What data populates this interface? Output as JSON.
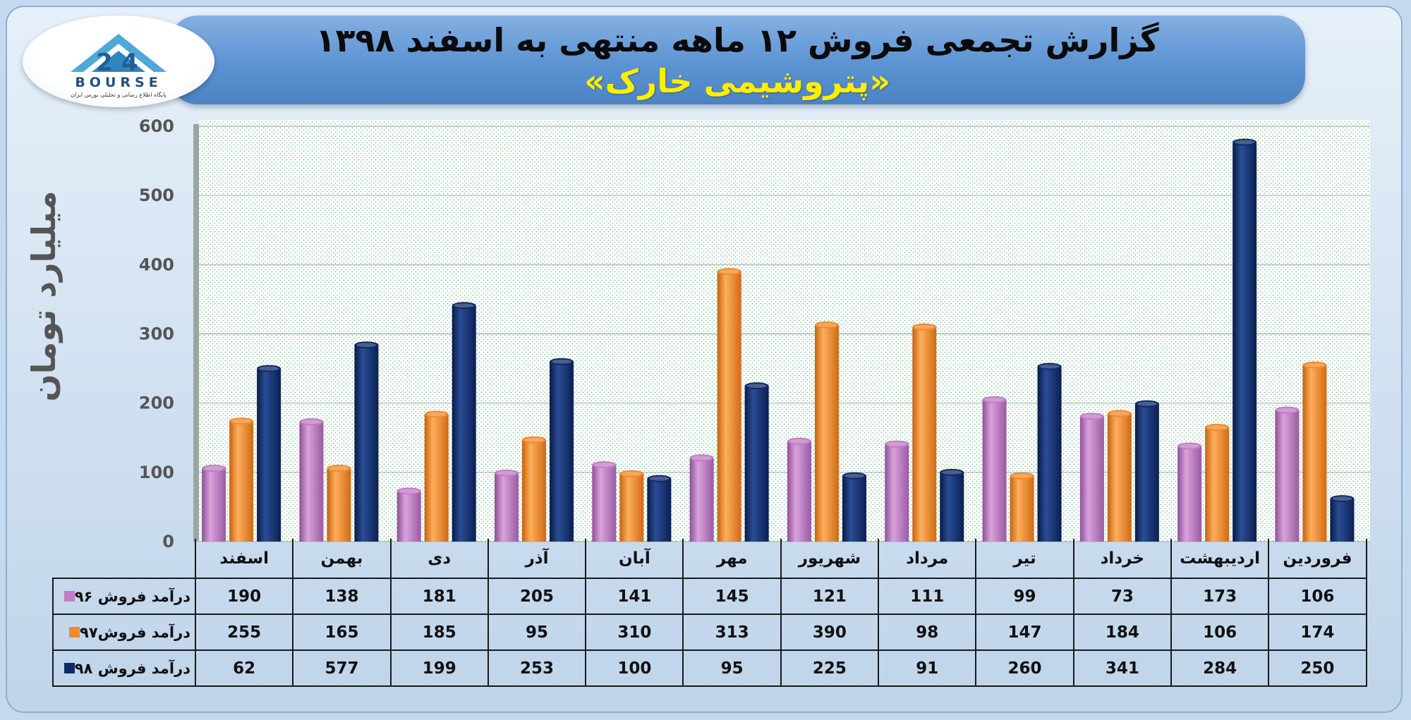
{
  "header": {
    "title": "گزارش تجمعی فروش ۱۲ ماهه منتهی به اسفند ۱۳۹۸",
    "subtitle": "«پتروشیمی خارک»"
  },
  "logo": {
    "wordmark": "BOURSE",
    "tagline": "پایگاه اطلاع رسانی و تحلیلی بورس ایران"
  },
  "chart_data": {
    "type": "bar",
    "ylabel": "میلیارد تومان",
    "ylim": [
      0,
      600
    ],
    "yticks": [
      "0",
      "100",
      "200",
      "300",
      "400",
      "500",
      "600"
    ],
    "grid": true,
    "legend": "table-bottom",
    "categories": [
      "فروردین",
      "اردیبهشت",
      "خرداد",
      "تیر",
      "مرداد",
      "شهریور",
      "مهر",
      "آبان",
      "آذر",
      "دی",
      "بهمن",
      "اسفند"
    ],
    "series": [
      {
        "name": "درآمد فروش ۹۶",
        "color": "#c07cc4",
        "values": [
          106,
          173,
          73,
          99,
          111,
          121,
          145,
          141,
          205,
          181,
          138,
          190
        ]
      },
      {
        "name": "درآمد فروش۹۷",
        "color": "#f08a2a",
        "values": [
          174,
          106,
          184,
          147,
          98,
          390,
          313,
          310,
          95,
          185,
          165,
          255
        ]
      },
      {
        "name": "درآمد فروش ۹۸",
        "color": "#0f2a66",
        "values": [
          250,
          284,
          341,
          260,
          91,
          225,
          95,
          100,
          253,
          199,
          577,
          62
        ]
      }
    ]
  }
}
